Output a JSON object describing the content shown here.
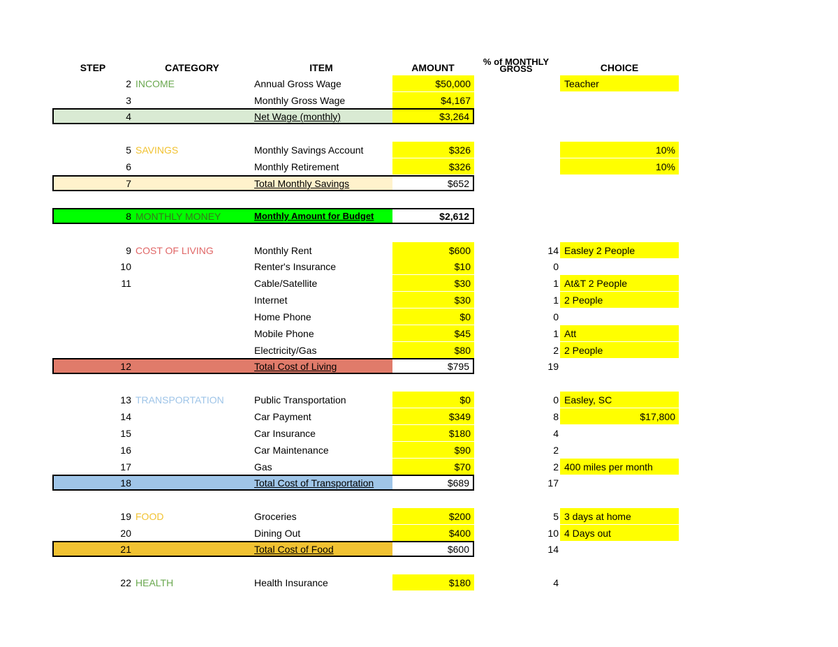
{
  "colors": {
    "highlight": "#ffff00",
    "income": "#6aa84f",
    "savings": "#f1c232",
    "monthly_money": "#00ff00",
    "cost_of_living": "#e06666",
    "transportation": "#9fc5e8",
    "food": "#f1c232",
    "health": "#6aa84f",
    "income_band": "#d9ead3",
    "savings_band": "#fff2cc",
    "col_band": "#e07b6a",
    "transport_band": "#9fc5e8",
    "food_band": "#f1c232"
  },
  "headers": {
    "step": "STEP",
    "category": "CATEGORY",
    "item": "ITEM",
    "amount": "AMOUNT",
    "percent": "% of MONTHLY GROSS",
    "choice": "CHOICE"
  },
  "rows": [
    {
      "step": "2",
      "category": "INCOME",
      "item": "Annual Gross Wage",
      "amount": "$50,000",
      "percent": "",
      "choice": "Teacher"
    },
    {
      "step": "3",
      "category": "",
      "item": "Monthly Gross Wage",
      "amount": "$4,167",
      "percent": "",
      "choice": ""
    },
    {
      "step": "4",
      "category": "",
      "item": "Net Wage (monthly)",
      "amount": "$3,264",
      "percent": "",
      "choice": ""
    },
    {
      "step": "5",
      "category": "SAVINGS",
      "item": "Monthly Savings Account",
      "amount": "$326",
      "percent": "",
      "choice": "10%"
    },
    {
      "step": "6",
      "category": "",
      "item": "Monthly Retirement",
      "amount": "$326",
      "percent": "",
      "choice": "10%"
    },
    {
      "step": "7",
      "category": "",
      "item": "Total Monthly Savings",
      "amount": "$652",
      "percent": "",
      "choice": ""
    },
    {
      "step": "8",
      "category": "MONTHLY MONEY",
      "item": "Monthly Amount for Budget",
      "amount": "$2,612",
      "percent": "",
      "choice": ""
    },
    {
      "step": "9",
      "category": "COST OF LIVING",
      "item": "Monthly Rent",
      "amount": "$600",
      "percent": "14",
      "choice": "Easley 2 People"
    },
    {
      "step": "10",
      "category": "",
      "item": "Renter's Insurance",
      "amount": "$10",
      "percent": "0",
      "choice": ""
    },
    {
      "step": "11",
      "category": "",
      "item": "Cable/Satellite",
      "amount": "$30",
      "percent": "1",
      "choice": "At&T 2 People"
    },
    {
      "step": "",
      "category": "",
      "item": "Internet",
      "amount": "$30",
      "percent": "1",
      "choice": "2 People"
    },
    {
      "step": "",
      "category": "",
      "item": "Home Phone",
      "amount": "$0",
      "percent": "0",
      "choice": ""
    },
    {
      "step": "",
      "category": "",
      "item": "Mobile Phone",
      "amount": "$45",
      "percent": "1",
      "choice": "Att"
    },
    {
      "step": "",
      "category": "",
      "item": "Electricity/Gas",
      "amount": "$80",
      "percent": "2",
      "choice": "2  People"
    },
    {
      "step": "12",
      "category": "",
      "item": "Total Cost of Living",
      "amount": "$795",
      "percent": "19",
      "choice": ""
    },
    {
      "step": "13",
      "category": "TRANSPORTATION",
      "item": "Public Transportation",
      "amount": "$0",
      "percent": "0",
      "choice": "Easley, SC"
    },
    {
      "step": "14",
      "category": "",
      "item": "Car Payment",
      "amount": "$349",
      "percent": "8",
      "choice": "$17,800"
    },
    {
      "step": "15",
      "category": "",
      "item": "Car Insurance",
      "amount": "$180",
      "percent": "4",
      "choice": ""
    },
    {
      "step": "16",
      "category": "",
      "item": "Car Maintenance",
      "amount": "$90",
      "percent": "2",
      "choice": ""
    },
    {
      "step": "17",
      "category": "",
      "item": "Gas",
      "amount": "$70",
      "percent": "2",
      "choice": "400 miles per month"
    },
    {
      "step": "18",
      "category": "",
      "item": "Total Cost of Transportation",
      "amount": "$689",
      "percent": "17",
      "choice": ""
    },
    {
      "step": "19",
      "category": "FOOD",
      "item": "Groceries",
      "amount": "$200",
      "percent": "5",
      "choice": "3 days at home"
    },
    {
      "step": "20",
      "category": "",
      "item": "Dining Out",
      "amount": "$400",
      "percent": "10",
      "choice": "4 Days out"
    },
    {
      "step": "21",
      "category": "",
      "item": "Total Cost of Food",
      "amount": "$600",
      "percent": "14",
      "choice": ""
    },
    {
      "step": "22",
      "category": "HEALTH",
      "item": "Health Insurance",
      "amount": "$180",
      "percent": "4",
      "choice": ""
    }
  ]
}
